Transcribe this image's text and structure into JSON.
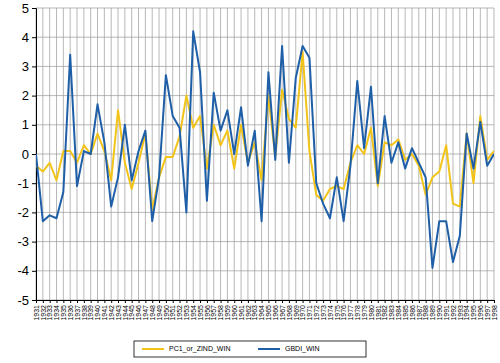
{
  "chart_data": {
    "type": "line",
    "x": [
      1931,
      1932,
      1933,
      1934,
      1935,
      1936,
      1937,
      1938,
      1939,
      1940,
      1941,
      1942,
      1943,
      1944,
      1945,
      1946,
      1947,
      1948,
      1949,
      1950,
      1951,
      1952,
      1953,
      1954,
      1955,
      1956,
      1957,
      1958,
      1959,
      1960,
      1961,
      1962,
      1963,
      1964,
      1965,
      1966,
      1967,
      1968,
      1969,
      1970,
      1971,
      1972,
      1973,
      1974,
      1975,
      1976,
      1977,
      1978,
      1979,
      1980,
      1981,
      1982,
      1983,
      1984,
      1985,
      1986,
      1987,
      1988,
      1989,
      1990,
      1991,
      1992,
      1993,
      1994,
      1995,
      1996,
      1997,
      1998
    ],
    "series": [
      {
        "name": "PC1_or_ZIND_WIN",
        "color": "#f2c41a",
        "values": [
          -0.4,
          -0.6,
          -0.3,
          -0.9,
          0.1,
          0.1,
          -0.3,
          0.3,
          0,
          0.7,
          0.1,
          -0.9,
          1.5,
          -0.3,
          -1.2,
          -0.3,
          0.7,
          -1.9,
          -0.8,
          -0.1,
          -0.1,
          0.6,
          2.0,
          0.9,
          1.3,
          -0.5,
          1.0,
          0.3,
          0.8,
          -0.5,
          1.0,
          -0.3,
          0.4,
          -0.9,
          2.0,
          -0.1,
          2.2,
          1.2,
          0.9,
          3.5,
          0.1,
          -1.4,
          -1.6,
          -1.2,
          -1.1,
          -1.2,
          -0.3,
          0.3,
          0,
          0.9,
          -1.1,
          0.4,
          0.3,
          0.5,
          -0.2,
          0,
          -0.4,
          -1.4,
          -0.8,
          -0.6,
          0.3,
          -1.7,
          -1.8,
          0.7,
          -1.0,
          1.3,
          -0.2,
          0.1
        ]
      },
      {
        "name": "GBDI_WIN",
        "color": "#1f5fa8",
        "values": [
          0,
          -2.3,
          -2.1,
          -2.2,
          -1.3,
          3.4,
          -1.1,
          0.1,
          0,
          1.7,
          0.4,
          -1.8,
          -0.8,
          1.0,
          -0.9,
          0.1,
          0.8,
          -2.3,
          -0.8,
          2.7,
          1.3,
          0.9,
          -2.0,
          4.2,
          2.8,
          -1.6,
          2.1,
          0.8,
          1.5,
          0,
          1.6,
          -0.4,
          0.8,
          -2.3,
          2.8,
          -0.2,
          3.7,
          -0.3,
          2.6,
          3.7,
          3.3,
          -1.0,
          -1.7,
          -2.2,
          -0.8,
          -2.3,
          -0.4,
          2.5,
          0.2,
          2.3,
          -1.0,
          1.3,
          -0.3,
          0.4,
          -0.5,
          0.2,
          -0.3,
          -0.8,
          -3.9,
          -2.3,
          -2.3,
          -3.7,
          -2.8,
          0.7,
          -0.5,
          1.1,
          -0.4,
          0
        ]
      }
    ],
    "xlim": [
      1931,
      1998
    ],
    "xticks": [
      1931,
      1932,
      1933,
      1934,
      1935,
      1936,
      1937,
      1938,
      1939,
      1940,
      1941,
      1942,
      1943,
      1944,
      1945,
      1946,
      1947,
      1948,
      1949,
      1950,
      1951,
      1952,
      1953,
      1954,
      1955,
      1956,
      1957,
      1958,
      1959,
      1960,
      1961,
      1962,
      1963,
      1964,
      1965,
      1966,
      1967,
      1968,
      1969,
      1970,
      1971,
      1972,
      1973,
      1974,
      1975,
      1976,
      1977,
      1978,
      1979,
      1980,
      1981,
      1982,
      1983,
      1984,
      1985,
      1986,
      1987,
      1988,
      1989,
      1990,
      1991,
      1992,
      1993,
      1994,
      1995,
      1996,
      1997,
      1998
    ],
    "ylim": [
      -5,
      5
    ],
    "yticks": [
      -5,
      -4,
      -3,
      -2,
      -1,
      0,
      1,
      2,
      3,
      4,
      5
    ],
    "grid": true,
    "legend": "bottom"
  }
}
